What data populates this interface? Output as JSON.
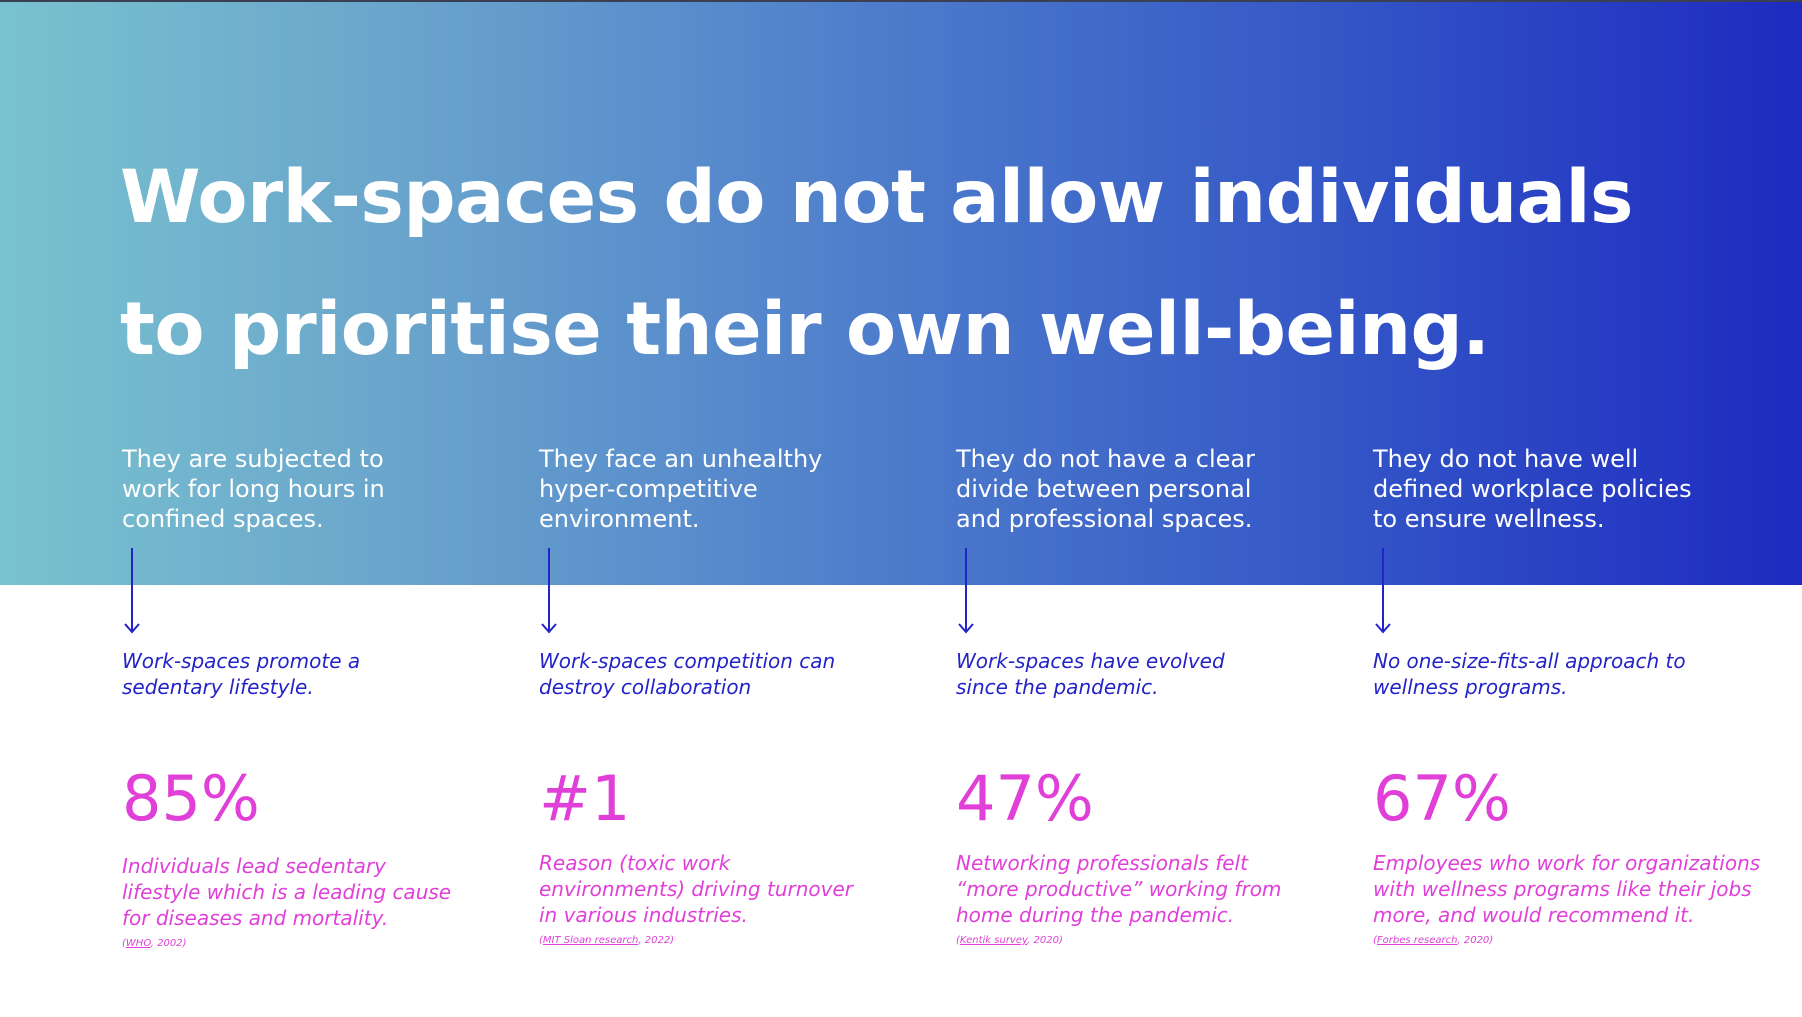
{
  "headline": {
    "line1": "Work-spaces do not allow individuals",
    "line2": "to prioritise their own well-being."
  },
  "columns": [
    {
      "claim": [
        "They are subjected to",
        "work for long hours in",
        "confined spaces."
      ],
      "subline": [
        "Work-spaces promote a",
        "sedentary lifestyle."
      ],
      "stat": "85%",
      "stat_desc": [
        "Individuals lead sedentary",
        "lifestyle which is a leading cause",
        "for diseases and mortality."
      ],
      "cite_source": "WHO",
      "cite_year": ", 2002)"
    },
    {
      "claim": [
        "They face an unhealthy",
        "hyper-competitive",
        "environment."
      ],
      "subline": [
        "Work-spaces competition can",
        "destroy collaboration"
      ],
      "stat": "#1",
      "stat_desc": [
        "Reason (toxic work",
        "environments) driving turnover",
        "in various industries."
      ],
      "cite_source": "MIT Sloan research",
      "cite_year": ", 2022)"
    },
    {
      "claim": [
        "They do not have a clear",
        "divide between personal",
        "and professional spaces."
      ],
      "subline": [
        "Work-spaces have evolved",
        "since the pandemic."
      ],
      "stat": "47%",
      "stat_desc": [
        "Networking professionals felt",
        "“more productive” working from",
        "home during the pandemic."
      ],
      "cite_source": "Kentik survey",
      "cite_year": ", 2020)"
    },
    {
      "claim": [
        "They do not have well",
        "defined workplace policies",
        "to ensure wellness."
      ],
      "subline": [
        "No one-size-fits-all approach to",
        "wellness programs."
      ],
      "stat": "67%",
      "stat_desc": [
        "Employees who work for organizations",
        "with wellness programs like their jobs",
        "more, and would recommend it."
      ],
      "cite_source": "Forbes research",
      "cite_year": ", 2020)"
    }
  ],
  "cite_open": "(",
  "colors": {
    "gradient_start": "#79c2cf",
    "gradient_end": "#1e2ac0",
    "arrow_and_subline": "#2323c8",
    "stat_pink": "#e03fd8",
    "headline_text": "#ffffff"
  }
}
